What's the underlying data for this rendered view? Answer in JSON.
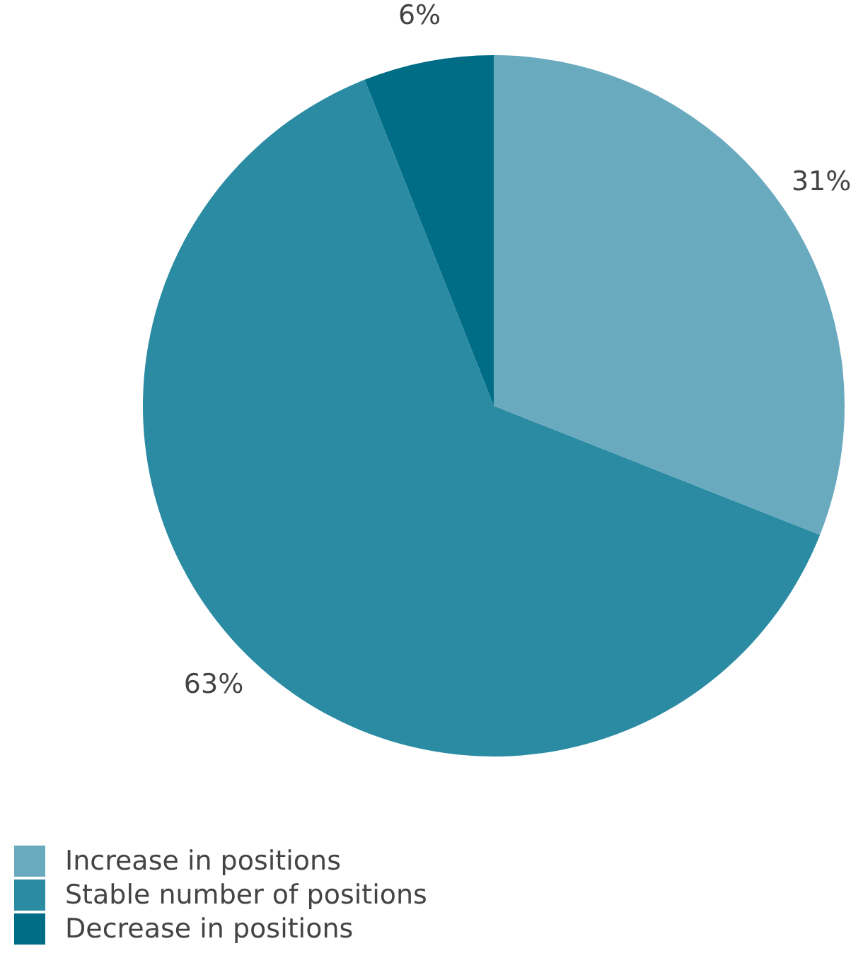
{
  "chart_data": {
    "type": "pie",
    "categories": [
      "Increase in positions",
      "Stable number of positions",
      "Decrease in positions"
    ],
    "values": [
      31,
      63,
      6
    ],
    "colors": [
      "#6aaabf",
      "#2a8ba3",
      "#006d87"
    ],
    "value_labels": [
      "31%",
      "63%",
      "6%"
    ],
    "legend": "bottom left"
  }
}
